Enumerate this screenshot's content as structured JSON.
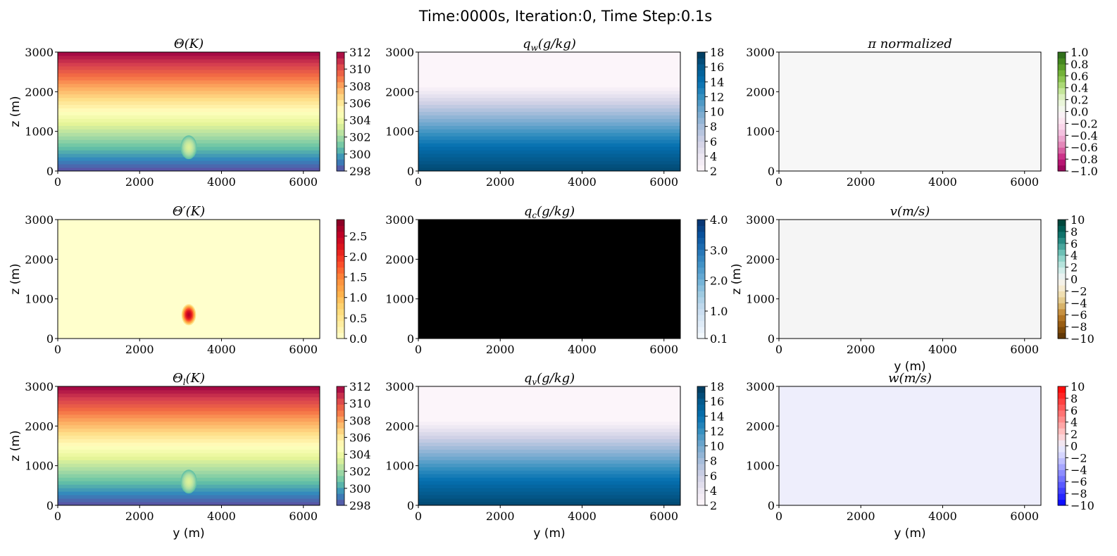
{
  "figure": {
    "suptitle": "Time:0000s, Iteration:0, Time Step:0.1s"
  },
  "chart_data": [
    {
      "type": "heatmap",
      "id": "theta",
      "title": "Θ(K)",
      "xlabel": "",
      "ylabel": "z (m)",
      "xlim": [
        0,
        6400
      ],
      "ylim": [
        0,
        3000
      ],
      "xticks": [
        "0",
        "2000",
        "4000",
        "6000"
      ],
      "yticks": [
        "0",
        "1000",
        "2000",
        "3000"
      ],
      "field": "layered",
      "surface_value": 298,
      "top_value": 312,
      "bubble": {
        "center_y_m": 3200,
        "center_z_m": 600,
        "amplitude": 2,
        "radius_y_m": 200,
        "radius_z_m": 300
      },
      "colormap": [
        "#5e4fa2",
        "#3288bd",
        "#66c2a5",
        "#abdda4",
        "#e6f598",
        "#ffffbf",
        "#fee08b",
        "#fdae61",
        "#f46d43",
        "#d53e4f",
        "#9e0142"
      ],
      "colorbar": {
        "min": 298,
        "max": 312,
        "ticks": [
          "298",
          "300",
          "302",
          "304",
          "306",
          "308",
          "310",
          "312"
        ]
      }
    },
    {
      "type": "heatmap",
      "id": "qw",
      "title": "q_w(g/kg)",
      "xlabel": "",
      "ylabel": "",
      "xlim": [
        0,
        6400
      ],
      "ylim": [
        0,
        3000
      ],
      "xticks": [
        "0",
        "2000",
        "4000",
        "6000"
      ],
      "yticks": [
        "0",
        "1000",
        "2000",
        "3000"
      ],
      "field": "moisture",
      "surface_value": 17,
      "top_value": 2.3,
      "moist_layer_top_m": 2150,
      "colormap": [
        "#fff7fb",
        "#ece7f2",
        "#d0d1e6",
        "#a6bddb",
        "#74a9cf",
        "#3690c0",
        "#0570b0",
        "#045a8d",
        "#023858"
      ],
      "colorbar": {
        "min": 2,
        "max": 18,
        "ticks": [
          "2",
          "4",
          "6",
          "8",
          "10",
          "12",
          "14",
          "16",
          "18"
        ]
      }
    },
    {
      "type": "heatmap",
      "id": "pi",
      "title": "π normalized",
      "xlabel": "",
      "ylabel": "",
      "xlim": [
        0,
        6400
      ],
      "ylim": [
        0,
        3000
      ],
      "xticks": [
        "0",
        "2000",
        "4000",
        "6000"
      ],
      "yticks": [
        "0",
        "1000",
        "2000",
        "3000"
      ],
      "field": "uniform",
      "value": 0.0,
      "colormap": [
        "#8e0152",
        "#c51b7d",
        "#de77ae",
        "#f1b6da",
        "#fde0ef",
        "#f7f7f7",
        "#e6f5d0",
        "#b8e186",
        "#7fbc41",
        "#4d9221",
        "#276419"
      ],
      "colorbar": {
        "min": -1.0,
        "max": 1.0,
        "ticks": [
          "−1.0",
          "−0.8",
          "−0.6",
          "−0.4",
          "−0.2",
          "0.0",
          "0.2",
          "0.4",
          "0.6",
          "0.8",
          "1.0"
        ]
      }
    },
    {
      "type": "heatmap",
      "id": "thetap",
      "title": "Θ′(K)",
      "xlabel": "",
      "ylabel": "z (m)",
      "xlim": [
        0,
        6400
      ],
      "ylim": [
        0,
        3000
      ],
      "xticks": [
        "0",
        "2000",
        "4000",
        "6000"
      ],
      "yticks": [
        "0",
        "1000",
        "2000",
        "3000"
      ],
      "field": "bubble",
      "bubble": {
        "center_y_m": 3200,
        "center_z_m": 600,
        "amplitude": 2,
        "radius_y_m": 200,
        "radius_z_m": 300
      },
      "colormap": [
        "#ffffcc",
        "#ffeda0",
        "#fed976",
        "#feb24c",
        "#fd8d3c",
        "#fc4e2a",
        "#e31a1c",
        "#bd0026",
        "#800026"
      ],
      "colorbar": {
        "min": 0.0,
        "max": 2.9,
        "ticks": [
          "0.0",
          "0.5",
          "1.0",
          "1.5",
          "2.0",
          "2.5"
        ]
      }
    },
    {
      "type": "heatmap",
      "id": "qc",
      "title": "q_c(g/kg)",
      "xlabel": "",
      "ylabel": "",
      "xlim": [
        0,
        6400
      ],
      "ylim": [
        0,
        3000
      ],
      "xticks": [
        "0",
        "2000",
        "4000",
        "6000"
      ],
      "yticks": [
        "0",
        "1000",
        "2000",
        "3000"
      ],
      "field": "masked",
      "fill_color": "#000000",
      "colormap": [
        "#f7fbff",
        "#deebf7",
        "#c6dbef",
        "#9ecae1",
        "#6baed6",
        "#4292c6",
        "#2171b5",
        "#08519c",
        "#08306b"
      ],
      "colorbar": {
        "min": 0.1,
        "max": 4.0,
        "ticks": [
          "0.1",
          "1.0",
          "2.0",
          "3.0",
          "4.0"
        ]
      }
    },
    {
      "type": "heatmap",
      "id": "v",
      "title": "v(m/s)",
      "xlabel": "y (m)",
      "ylabel": "z (m)",
      "xlim": [
        0,
        6400
      ],
      "ylim": [
        0,
        3000
      ],
      "xticks": [
        "0",
        "2000",
        "4000",
        "6000"
      ],
      "yticks": [
        "0",
        "1000",
        "2000",
        "3000"
      ],
      "field": "uniform",
      "value": 0.0,
      "colormap": [
        "#543005",
        "#8c510a",
        "#bf812d",
        "#dfc27d",
        "#f6e8c3",
        "#f5f5f5",
        "#c7eae5",
        "#80cdc1",
        "#35978f",
        "#01665e",
        "#003c30"
      ],
      "colorbar": {
        "min": -10,
        "max": 10,
        "ticks": [
          "−10",
          "−8",
          "−6",
          "−4",
          "−2",
          "0",
          "2",
          "4",
          "6",
          "8",
          "10"
        ]
      }
    },
    {
      "type": "heatmap",
      "id": "thetal",
      "title": "Θ_l(K)",
      "xlabel": "y (m)",
      "ylabel": "z (m)",
      "xlim": [
        0,
        6400
      ],
      "ylim": [
        0,
        3000
      ],
      "xticks": [
        "0",
        "2000",
        "4000",
        "6000"
      ],
      "yticks": [
        "0",
        "1000",
        "2000",
        "3000"
      ],
      "field": "layered",
      "surface_value": 298,
      "top_value": 312,
      "bubble": {
        "center_y_m": 3200,
        "center_z_m": 600,
        "amplitude": 2,
        "radius_y_m": 200,
        "radius_z_m": 300
      },
      "colormap": [
        "#5e4fa2",
        "#3288bd",
        "#66c2a5",
        "#abdda4",
        "#e6f598",
        "#ffffbf",
        "#fee08b",
        "#fdae61",
        "#f46d43",
        "#d53e4f",
        "#9e0142"
      ],
      "colorbar": {
        "min": 298,
        "max": 312,
        "ticks": [
          "298",
          "300",
          "302",
          "304",
          "306",
          "308",
          "310",
          "312"
        ]
      }
    },
    {
      "type": "heatmap",
      "id": "qv",
      "title": "q_v(g/kg)",
      "xlabel": "y (m)",
      "ylabel": "",
      "xlim": [
        0,
        6400
      ],
      "ylim": [
        0,
        3000
      ],
      "xticks": [
        "0",
        "2000",
        "4000",
        "6000"
      ],
      "yticks": [
        "0",
        "1000",
        "2000",
        "3000"
      ],
      "field": "moisture",
      "surface_value": 17,
      "top_value": 2.3,
      "moist_layer_top_m": 2150,
      "colormap": [
        "#fff7fb",
        "#ece7f2",
        "#d0d1e6",
        "#a6bddb",
        "#74a9cf",
        "#3690c0",
        "#0570b0",
        "#045a8d",
        "#023858"
      ],
      "colorbar": {
        "min": 2,
        "max": 18,
        "ticks": [
          "2",
          "4",
          "6",
          "8",
          "10",
          "12",
          "14",
          "16",
          "18"
        ]
      }
    },
    {
      "type": "heatmap",
      "id": "w",
      "title": "w(m/s)",
      "xlabel": "y (m)",
      "ylabel": "",
      "xlim": [
        0,
        6400
      ],
      "ylim": [
        0,
        3000
      ],
      "xticks": [
        "0",
        "2000",
        "4000",
        "6000"
      ],
      "yticks": [
        "0",
        "1000",
        "2000",
        "3000"
      ],
      "field": "uniform",
      "value": 0.0,
      "colormap": [
        "#0000ff",
        "#3333ff",
        "#6666ff",
        "#9999ff",
        "#ccccff",
        "#eeeefc",
        "#ffcccc",
        "#ff9999",
        "#ff6666",
        "#ff3333",
        "#ff0000"
      ],
      "colorbar": {
        "min": -10,
        "max": 10,
        "ticks": [
          "−10",
          "−8",
          "−6",
          "−4",
          "−2",
          "0",
          "2",
          "4",
          "6",
          "8",
          "10"
        ]
      }
    }
  ]
}
